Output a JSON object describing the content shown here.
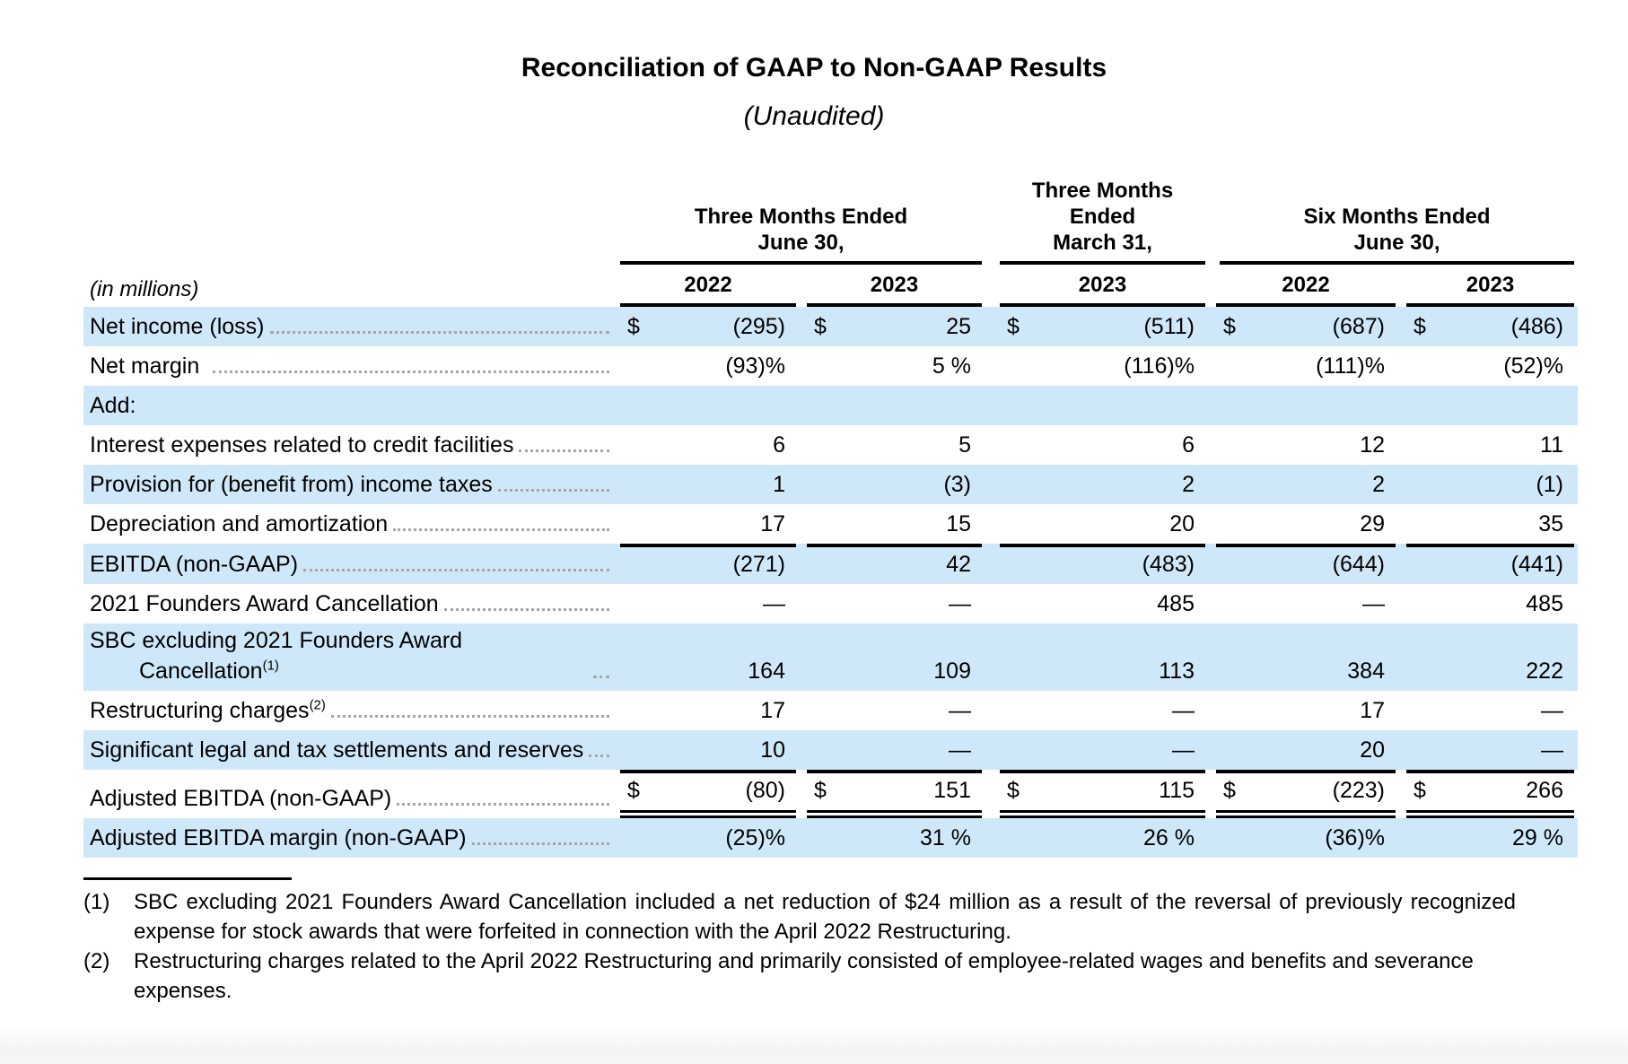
{
  "page": {
    "title": "Reconciliation of GAAP to Non-GAAP Results",
    "subtitle": "(Unaudited)"
  },
  "table": {
    "units_note": "(in millions)",
    "currency_symbol": "$",
    "highlight_color": "#cfe8f9",
    "column_groups": [
      {
        "label": "Three Months Ended\nJune 30,",
        "years": [
          "2022",
          "2023"
        ]
      },
      {
        "label": "Three Months\nEnded\nMarch 31,",
        "years": [
          "2023"
        ]
      },
      {
        "label": "Six Months Ended\nJune 30,",
        "years": [
          "2022",
          "2023"
        ]
      }
    ],
    "rows": [
      {
        "label": "Net income (loss)",
        "dollar": true,
        "highlight": true,
        "values": [
          "(295)",
          "25",
          "(511)",
          "(687)",
          "(486)"
        ]
      },
      {
        "label": "Net margin",
        "values": [
          "(93)%",
          "5 %",
          "(116)%",
          "(111)%",
          "(52)%"
        ]
      },
      {
        "label": "Add:",
        "section": true,
        "highlight": true,
        "values": [
          "",
          "",
          "",
          "",
          ""
        ]
      },
      {
        "label": "Interest expenses related to credit facilities",
        "values": [
          "6",
          "5",
          "6",
          "12",
          "11"
        ]
      },
      {
        "label": "Provision for (benefit from) income taxes",
        "highlight": true,
        "values": [
          "1",
          "(3)",
          "2",
          "2",
          "(1)"
        ]
      },
      {
        "label": "Depreciation and amortization",
        "values": [
          "17",
          "15",
          "20",
          "29",
          "35"
        ]
      },
      {
        "label": "EBITDA (non-GAAP)",
        "highlight": true,
        "rule_top": true,
        "values": [
          "(271)",
          "42",
          "(483)",
          "(644)",
          "(441)"
        ]
      },
      {
        "label": "2021 Founders Award Cancellation",
        "values": [
          "—",
          "—",
          "485",
          "—",
          "485"
        ]
      },
      {
        "label": "SBC excluding 2021 Founders Award Cancellation",
        "footnote_ref": "(1)",
        "highlight": true,
        "values": [
          "164",
          "109",
          "113",
          "384",
          "222"
        ]
      },
      {
        "label": "Restructuring charges",
        "footnote_ref": "(2)",
        "values": [
          "17",
          "—",
          "—",
          "17",
          "—"
        ]
      },
      {
        "label": "Significant legal and tax settlements and reserves",
        "highlight": true,
        "values": [
          "10",
          "—",
          "—",
          "20",
          "—"
        ]
      },
      {
        "label": "Adjusted EBITDA (non-GAAP)",
        "dollar": true,
        "rule_top": true,
        "rule_double_bottom": true,
        "values": [
          "(80)",
          "151",
          "115",
          "(223)",
          "266"
        ]
      },
      {
        "label": "Adjusted EBITDA margin (non-GAAP)",
        "highlight": true,
        "values": [
          "(25)%",
          "31 %",
          "26 %",
          "(36)%",
          "29 %"
        ]
      }
    ]
  },
  "footnotes": [
    {
      "marker": "(1)",
      "text": "SBC excluding 2021 Founders Award Cancellation included a net reduction of $24 million as a result of the reversal of previously recognized expense for stock awards that were forfeited in connection with the April 2022 Restructuring.",
      "justify": true
    },
    {
      "marker": "(2)",
      "text": "Restructuring charges related to the April 2022 Restructuring and primarily consisted of employee-related wages and benefits and severance expenses.",
      "justify": false
    }
  ]
}
